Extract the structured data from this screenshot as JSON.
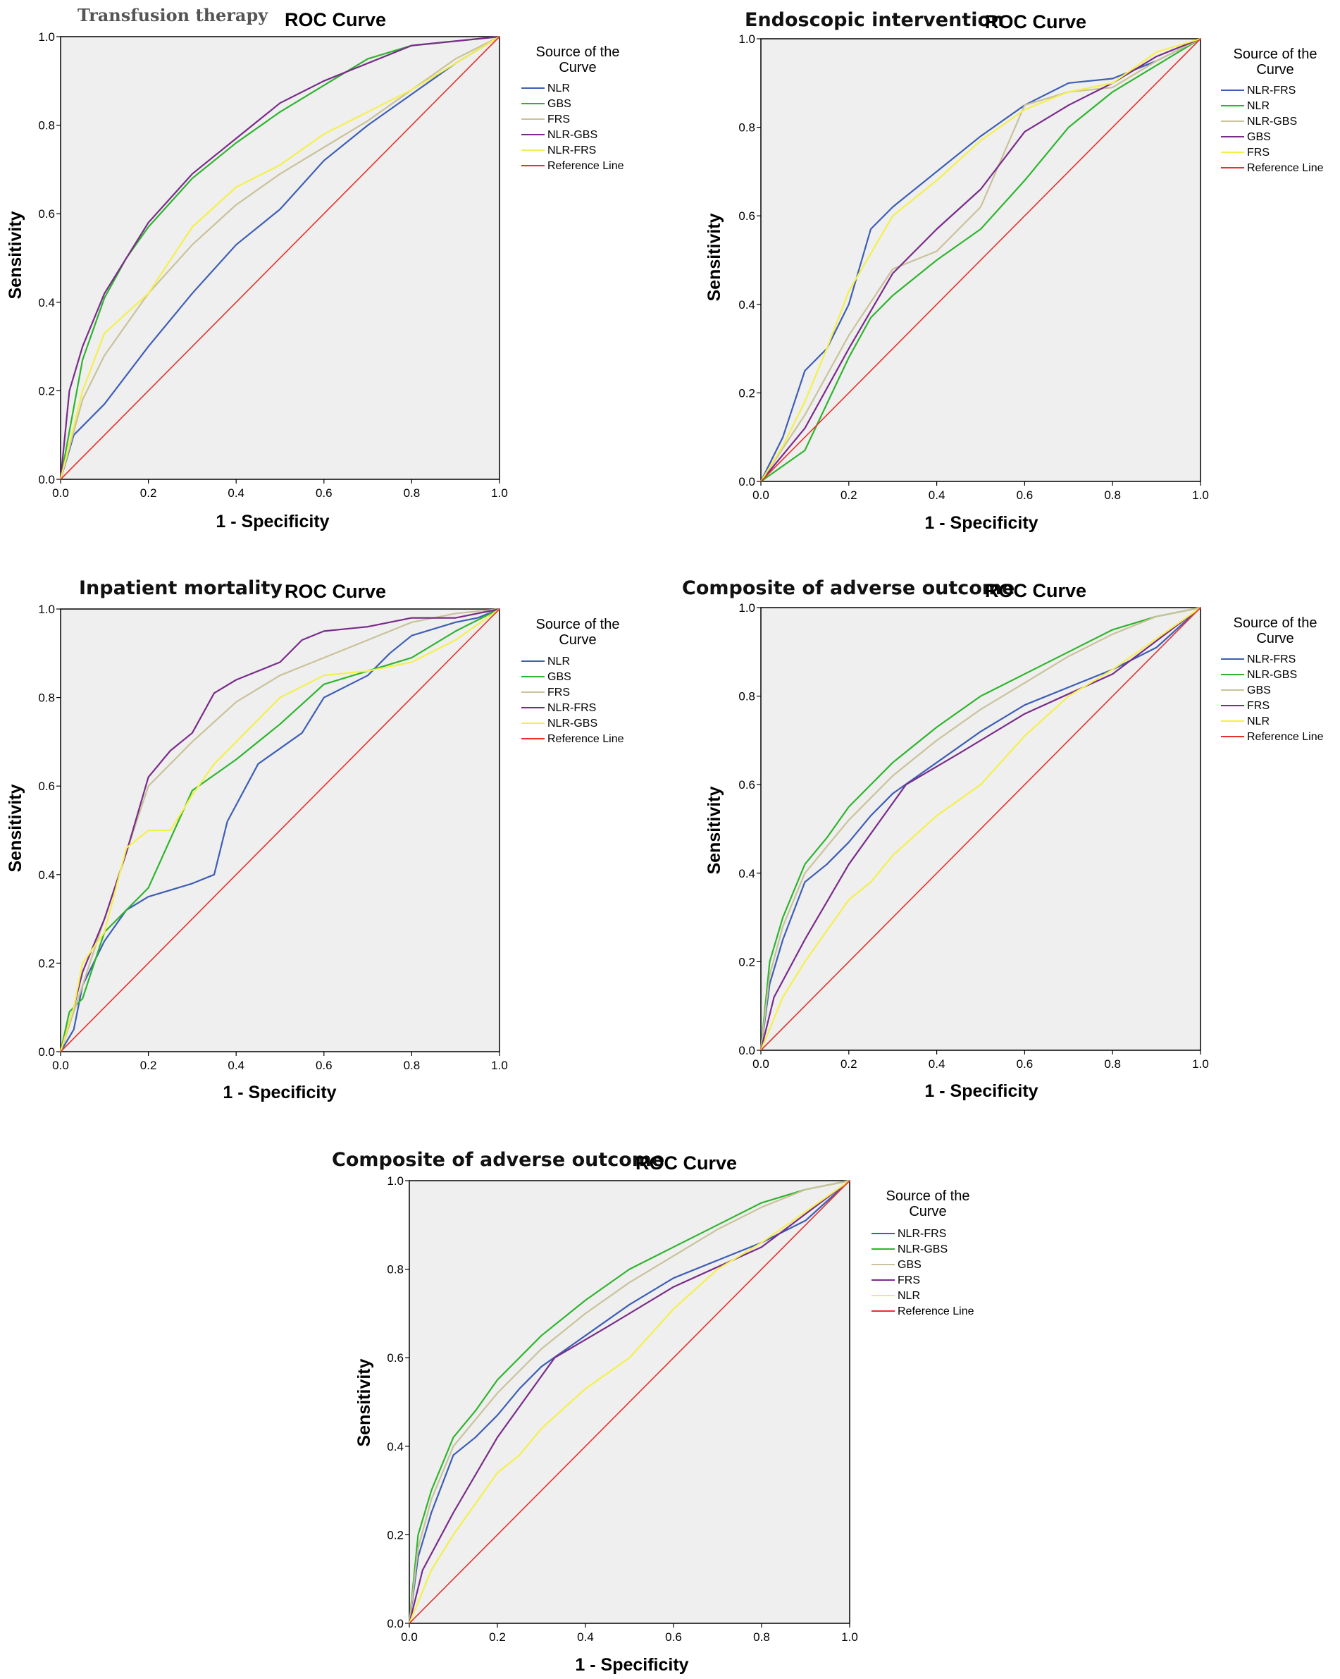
{
  "colors": {
    "NLR-FRS-blue": "#3d5eb5",
    "green": "#2db52d",
    "beige": "#c9c29a",
    "purple": "#7a2b8a",
    "yellow": "#f4f04a",
    "reference": "#e8302a"
  },
  "chart_data": [
    {
      "type": "line",
      "prefix_title": "Transfusion therapy",
      "title": "ROC Curve",
      "xlabel": "1 - Specificity",
      "ylabel": "Sensitivity",
      "xlim": [
        0,
        1
      ],
      "ylim": [
        0,
        1
      ],
      "x_ticks": [
        "0.0",
        "0.2",
        "0.4",
        "0.6",
        "0.8",
        "1.0"
      ],
      "y_ticks": [
        "0.0",
        "0.2",
        "0.4",
        "0.6",
        "0.8",
        "1.0"
      ],
      "legend_title": "Source of the Curve",
      "legend": [
        "NLR",
        "GBS",
        "FRS",
        "NLR-GBS",
        "NLR-FRS",
        "Reference Line"
      ],
      "series": [
        {
          "name": "NLR",
          "color": "#3d5eb5",
          "x": [
            0,
            0.03,
            0.1,
            0.2,
            0.3,
            0.4,
            0.5,
            0.6,
            0.7,
            0.8,
            0.9,
            1
          ],
          "y": [
            0,
            0.1,
            0.17,
            0.3,
            0.42,
            0.53,
            0.61,
            0.72,
            0.8,
            0.87,
            0.94,
            1
          ]
        },
        {
          "name": "GBS",
          "color": "#2db52d",
          "x": [
            0,
            0.05,
            0.1,
            0.15,
            0.2,
            0.3,
            0.4,
            0.5,
            0.6,
            0.7,
            0.8,
            1
          ],
          "y": [
            0,
            0.27,
            0.41,
            0.5,
            0.57,
            0.68,
            0.76,
            0.83,
            0.89,
            0.95,
            0.98,
            1
          ]
        },
        {
          "name": "FRS",
          "color": "#c9c29a",
          "x": [
            0,
            0.05,
            0.1,
            0.2,
            0.3,
            0.4,
            0.5,
            0.6,
            0.7,
            0.8,
            0.9,
            1
          ],
          "y": [
            0,
            0.18,
            0.28,
            0.42,
            0.53,
            0.62,
            0.69,
            0.75,
            0.81,
            0.88,
            0.95,
            1
          ]
        },
        {
          "name": "NLR-GBS",
          "color": "#7a2b8a",
          "x": [
            0,
            0.02,
            0.05,
            0.1,
            0.2,
            0.3,
            0.4,
            0.5,
            0.6,
            0.7,
            0.8,
            0.9,
            1
          ],
          "y": [
            0,
            0.2,
            0.3,
            0.42,
            0.58,
            0.69,
            0.77,
            0.85,
            0.9,
            0.94,
            0.98,
            0.99,
            1
          ]
        },
        {
          "name": "NLR-FRS",
          "color": "#f4f04a",
          "x": [
            0,
            0.05,
            0.1,
            0.2,
            0.3,
            0.4,
            0.5,
            0.6,
            0.7,
            0.8,
            0.9,
            1
          ],
          "y": [
            0,
            0.2,
            0.33,
            0.42,
            0.57,
            0.66,
            0.71,
            0.78,
            0.83,
            0.88,
            0.94,
            1
          ]
        },
        {
          "name": "Reference Line",
          "color": "#e8302a",
          "x": [
            0,
            1
          ],
          "y": [
            0,
            1
          ]
        }
      ]
    },
    {
      "type": "line",
      "prefix_title": "Endoscopic intervention",
      "title": "ROC Curve",
      "xlabel": "1 - Specificity",
      "ylabel": "Sensitivity",
      "xlim": [
        0,
        1
      ],
      "ylim": [
        0,
        1
      ],
      "x_ticks": [
        "0.0",
        "0.2",
        "0.4",
        "0.6",
        "0.8",
        "1.0"
      ],
      "y_ticks": [
        "0.0",
        "0.2",
        "0.4",
        "0.6",
        "0.8",
        "1.0"
      ],
      "legend_title": "Source of the Curve",
      "legend": [
        "NLR-FRS",
        "NLR",
        "NLR-GBS",
        "GBS",
        "FRS",
        "Reference Line"
      ],
      "series": [
        {
          "name": "NLR-FRS",
          "color": "#3d5eb5",
          "x": [
            0,
            0.05,
            0.1,
            0.15,
            0.2,
            0.25,
            0.3,
            0.4,
            0.5,
            0.6,
            0.7,
            0.8,
            0.9,
            1
          ],
          "y": [
            0,
            0.1,
            0.25,
            0.3,
            0.4,
            0.57,
            0.62,
            0.7,
            0.78,
            0.85,
            0.9,
            0.91,
            0.95,
            1
          ]
        },
        {
          "name": "NLR",
          "color": "#2db52d",
          "x": [
            0,
            0.1,
            0.2,
            0.25,
            0.3,
            0.4,
            0.5,
            0.6,
            0.7,
            0.8,
            0.9,
            1
          ],
          "y": [
            0,
            0.07,
            0.28,
            0.37,
            0.42,
            0.5,
            0.57,
            0.68,
            0.8,
            0.88,
            0.94,
            1
          ]
        },
        {
          "name": "NLR-GBS",
          "color": "#c9c29a",
          "x": [
            0,
            0.1,
            0.2,
            0.3,
            0.4,
            0.5,
            0.6,
            0.7,
            0.8,
            0.9,
            1
          ],
          "y": [
            0,
            0.15,
            0.33,
            0.48,
            0.52,
            0.62,
            0.85,
            0.88,
            0.89,
            0.95,
            1
          ]
        },
        {
          "name": "GBS",
          "color": "#7a2b8a",
          "x": [
            0,
            0.1,
            0.2,
            0.3,
            0.4,
            0.5,
            0.6,
            0.7,
            0.8,
            0.9,
            1
          ],
          "y": [
            0,
            0.12,
            0.3,
            0.47,
            0.57,
            0.66,
            0.79,
            0.85,
            0.9,
            0.96,
            1
          ]
        },
        {
          "name": "FRS",
          "color": "#f4f04a",
          "x": [
            0,
            0.05,
            0.1,
            0.15,
            0.2,
            0.3,
            0.4,
            0.5,
            0.6,
            0.7,
            0.8,
            0.9,
            1
          ],
          "y": [
            0,
            0.08,
            0.18,
            0.3,
            0.43,
            0.6,
            0.68,
            0.77,
            0.84,
            0.88,
            0.9,
            0.97,
            1
          ]
        },
        {
          "name": "Reference Line",
          "color": "#e8302a",
          "x": [
            0,
            1
          ],
          "y": [
            0,
            1
          ]
        }
      ]
    },
    {
      "type": "line",
      "prefix_title": "Inpatient mortality",
      "title": "ROC Curve",
      "xlabel": "1 - Specificity",
      "ylabel": "Sensitivity",
      "xlim": [
        0,
        1
      ],
      "ylim": [
        0,
        1
      ],
      "x_ticks": [
        "0.0",
        "0.2",
        "0.4",
        "0.6",
        "0.8",
        "1.0"
      ],
      "y_ticks": [
        "0.0",
        "0.2",
        "0.4",
        "0.6",
        "0.8",
        "1.0"
      ],
      "legend_title": "Source of the Curve",
      "legend": [
        "NLR",
        "GBS",
        "FRS",
        "NLR-FRS",
        "NLR-GBS",
        "Reference Line"
      ],
      "series": [
        {
          "name": "NLR",
          "color": "#3d5eb5",
          "x": [
            0,
            0.03,
            0.05,
            0.1,
            0.15,
            0.2,
            0.3,
            0.35,
            0.38,
            0.45,
            0.55,
            0.6,
            0.7,
            0.75,
            0.8,
            0.9,
            0.95,
            1
          ],
          "y": [
            0,
            0.05,
            0.15,
            0.25,
            0.32,
            0.35,
            0.38,
            0.4,
            0.52,
            0.65,
            0.72,
            0.8,
            0.85,
            0.9,
            0.94,
            0.97,
            0.98,
            1
          ]
        },
        {
          "name": "GBS",
          "color": "#2db52d",
          "x": [
            0,
            0.02,
            0.05,
            0.1,
            0.2,
            0.3,
            0.4,
            0.5,
            0.6,
            0.7,
            0.8,
            0.9,
            1
          ],
          "y": [
            0,
            0.09,
            0.12,
            0.27,
            0.37,
            0.59,
            0.66,
            0.74,
            0.83,
            0.86,
            0.89,
            0.95,
            1
          ]
        },
        {
          "name": "FRS",
          "color": "#c9c29a",
          "x": [
            0,
            0.05,
            0.1,
            0.15,
            0.2,
            0.3,
            0.4,
            0.5,
            0.6,
            0.7,
            0.8,
            0.9,
            1
          ],
          "y": [
            0,
            0.15,
            0.3,
            0.45,
            0.6,
            0.7,
            0.79,
            0.85,
            0.89,
            0.93,
            0.97,
            0.99,
            1
          ]
        },
        {
          "name": "NLR-FRS",
          "color": "#7a2b8a",
          "x": [
            0,
            0.03,
            0.05,
            0.1,
            0.15,
            0.2,
            0.25,
            0.3,
            0.35,
            0.4,
            0.5,
            0.55,
            0.6,
            0.7,
            0.8,
            0.9,
            1
          ],
          "y": [
            0,
            0.1,
            0.18,
            0.3,
            0.45,
            0.62,
            0.68,
            0.72,
            0.81,
            0.84,
            0.88,
            0.93,
            0.95,
            0.96,
            0.98,
            0.98,
            1
          ]
        },
        {
          "name": "NLR-GBS",
          "color": "#f4f04a",
          "x": [
            0,
            0.03,
            0.05,
            0.1,
            0.15,
            0.2,
            0.25,
            0.3,
            0.35,
            0.4,
            0.5,
            0.6,
            0.7,
            0.8,
            0.9,
            1
          ],
          "y": [
            0,
            0.1,
            0.2,
            0.27,
            0.46,
            0.5,
            0.5,
            0.58,
            0.65,
            0.7,
            0.8,
            0.85,
            0.86,
            0.88,
            0.93,
            1
          ]
        },
        {
          "name": "Reference Line",
          "color": "#e8302a",
          "x": [
            0,
            1
          ],
          "y": [
            0,
            1
          ]
        }
      ]
    },
    {
      "type": "line",
      "prefix_title": "Composite of adverse outcome",
      "title": "ROC Curve",
      "xlabel": "1 - Specificity",
      "ylabel": "Sensitivity",
      "xlim": [
        0,
        1
      ],
      "ylim": [
        0,
        1
      ],
      "x_ticks": [
        "0.0",
        "0.2",
        "0.4",
        "0.6",
        "0.8",
        "1.0"
      ],
      "y_ticks": [
        "0.0",
        "0.2",
        "0.4",
        "0.6",
        "0.8",
        "1.0"
      ],
      "legend_title": "Source of the Curve",
      "legend": [
        "NLR-FRS",
        "NLR-GBS",
        "GBS",
        "FRS",
        "NLR",
        "Reference Line"
      ],
      "series": [
        {
          "name": "NLR-FRS",
          "color": "#3d5eb5",
          "x": [
            0,
            0.02,
            0.05,
            0.1,
            0.15,
            0.2,
            0.25,
            0.3,
            0.4,
            0.5,
            0.6,
            0.7,
            0.8,
            0.9,
            1
          ],
          "y": [
            0,
            0.15,
            0.25,
            0.38,
            0.42,
            0.47,
            0.53,
            0.58,
            0.65,
            0.72,
            0.78,
            0.82,
            0.86,
            0.91,
            1
          ]
        },
        {
          "name": "NLR-GBS",
          "color": "#2db52d",
          "x": [
            0,
            0.02,
            0.05,
            0.1,
            0.15,
            0.2,
            0.3,
            0.4,
            0.5,
            0.6,
            0.7,
            0.8,
            0.9,
            1
          ],
          "y": [
            0,
            0.2,
            0.3,
            0.42,
            0.48,
            0.55,
            0.65,
            0.73,
            0.8,
            0.85,
            0.9,
            0.95,
            0.98,
            1
          ]
        },
        {
          "name": "GBS",
          "color": "#c9c29a",
          "x": [
            0,
            0.02,
            0.05,
            0.1,
            0.15,
            0.2,
            0.3,
            0.4,
            0.5,
            0.6,
            0.7,
            0.8,
            0.9,
            1
          ],
          "y": [
            0,
            0.17,
            0.28,
            0.4,
            0.46,
            0.52,
            0.62,
            0.7,
            0.77,
            0.83,
            0.89,
            0.94,
            0.98,
            1
          ]
        },
        {
          "name": "FRS",
          "color": "#7a2b8a",
          "x": [
            0,
            0.03,
            0.1,
            0.2,
            0.33,
            0.45,
            0.6,
            0.8,
            1
          ],
          "y": [
            0,
            0.12,
            0.25,
            0.42,
            0.6,
            0.67,
            0.76,
            0.85,
            1
          ]
        },
        {
          "name": "NLR",
          "color": "#f4f04a",
          "x": [
            0,
            0.05,
            0.1,
            0.15,
            0.2,
            0.25,
            0.3,
            0.4,
            0.5,
            0.6,
            0.7,
            0.8,
            0.9,
            1
          ],
          "y": [
            0,
            0.12,
            0.2,
            0.27,
            0.34,
            0.38,
            0.44,
            0.53,
            0.6,
            0.71,
            0.8,
            0.86,
            0.93,
            1
          ]
        },
        {
          "name": "Reference Line",
          "color": "#e8302a",
          "x": [
            0,
            1
          ],
          "y": [
            0,
            1
          ]
        }
      ]
    },
    {
      "type": "line",
      "prefix_title": "Composite of adverse outcome",
      "title": "ROC Curve",
      "xlabel": "1 - Specificity",
      "ylabel": "Sensitivity",
      "xlim": [
        0,
        1
      ],
      "ylim": [
        0,
        1
      ],
      "x_ticks": [
        "0.0",
        "0.2",
        "0.4",
        "0.6",
        "0.8",
        "1.0"
      ],
      "y_ticks": [
        "0.0",
        "0.2",
        "0.4",
        "0.6",
        "0.8",
        "1.0"
      ],
      "legend_title": "Source of the Curve",
      "legend": [
        "NLR-FRS",
        "NLR-GBS",
        "GBS",
        "FRS",
        "NLR",
        "Reference Line"
      ],
      "series": [
        {
          "name": "NLR-FRS",
          "color": "#3d5eb5",
          "x": [
            0,
            0.02,
            0.05,
            0.1,
            0.15,
            0.2,
            0.25,
            0.3,
            0.4,
            0.5,
            0.6,
            0.7,
            0.8,
            0.9,
            1
          ],
          "y": [
            0,
            0.15,
            0.25,
            0.38,
            0.42,
            0.47,
            0.53,
            0.58,
            0.65,
            0.72,
            0.78,
            0.82,
            0.86,
            0.91,
            1
          ]
        },
        {
          "name": "NLR-GBS",
          "color": "#2db52d",
          "x": [
            0,
            0.02,
            0.05,
            0.1,
            0.15,
            0.2,
            0.3,
            0.4,
            0.5,
            0.6,
            0.7,
            0.8,
            0.9,
            1
          ],
          "y": [
            0,
            0.2,
            0.3,
            0.42,
            0.48,
            0.55,
            0.65,
            0.73,
            0.8,
            0.85,
            0.9,
            0.95,
            0.98,
            1
          ]
        },
        {
          "name": "GBS",
          "color": "#c9c29a",
          "x": [
            0,
            0.02,
            0.05,
            0.1,
            0.15,
            0.2,
            0.3,
            0.4,
            0.5,
            0.6,
            0.7,
            0.8,
            0.9,
            1
          ],
          "y": [
            0,
            0.17,
            0.28,
            0.4,
            0.46,
            0.52,
            0.62,
            0.7,
            0.77,
            0.83,
            0.89,
            0.94,
            0.98,
            1
          ]
        },
        {
          "name": "FRS",
          "color": "#7a2b8a",
          "x": [
            0,
            0.03,
            0.1,
            0.2,
            0.33,
            0.45,
            0.6,
            0.8,
            1
          ],
          "y": [
            0,
            0.12,
            0.25,
            0.42,
            0.6,
            0.67,
            0.76,
            0.85,
            1
          ]
        },
        {
          "name": "NLR",
          "color": "#f4f04a",
          "x": [
            0,
            0.05,
            0.1,
            0.15,
            0.2,
            0.25,
            0.3,
            0.4,
            0.5,
            0.6,
            0.7,
            0.8,
            0.9,
            1
          ],
          "y": [
            0,
            0.12,
            0.2,
            0.27,
            0.34,
            0.38,
            0.44,
            0.53,
            0.6,
            0.71,
            0.8,
            0.86,
            0.93,
            1
          ]
        },
        {
          "name": "Reference Line",
          "color": "#e8302a",
          "x": [
            0,
            1
          ],
          "y": [
            0,
            1
          ]
        }
      ]
    }
  ]
}
